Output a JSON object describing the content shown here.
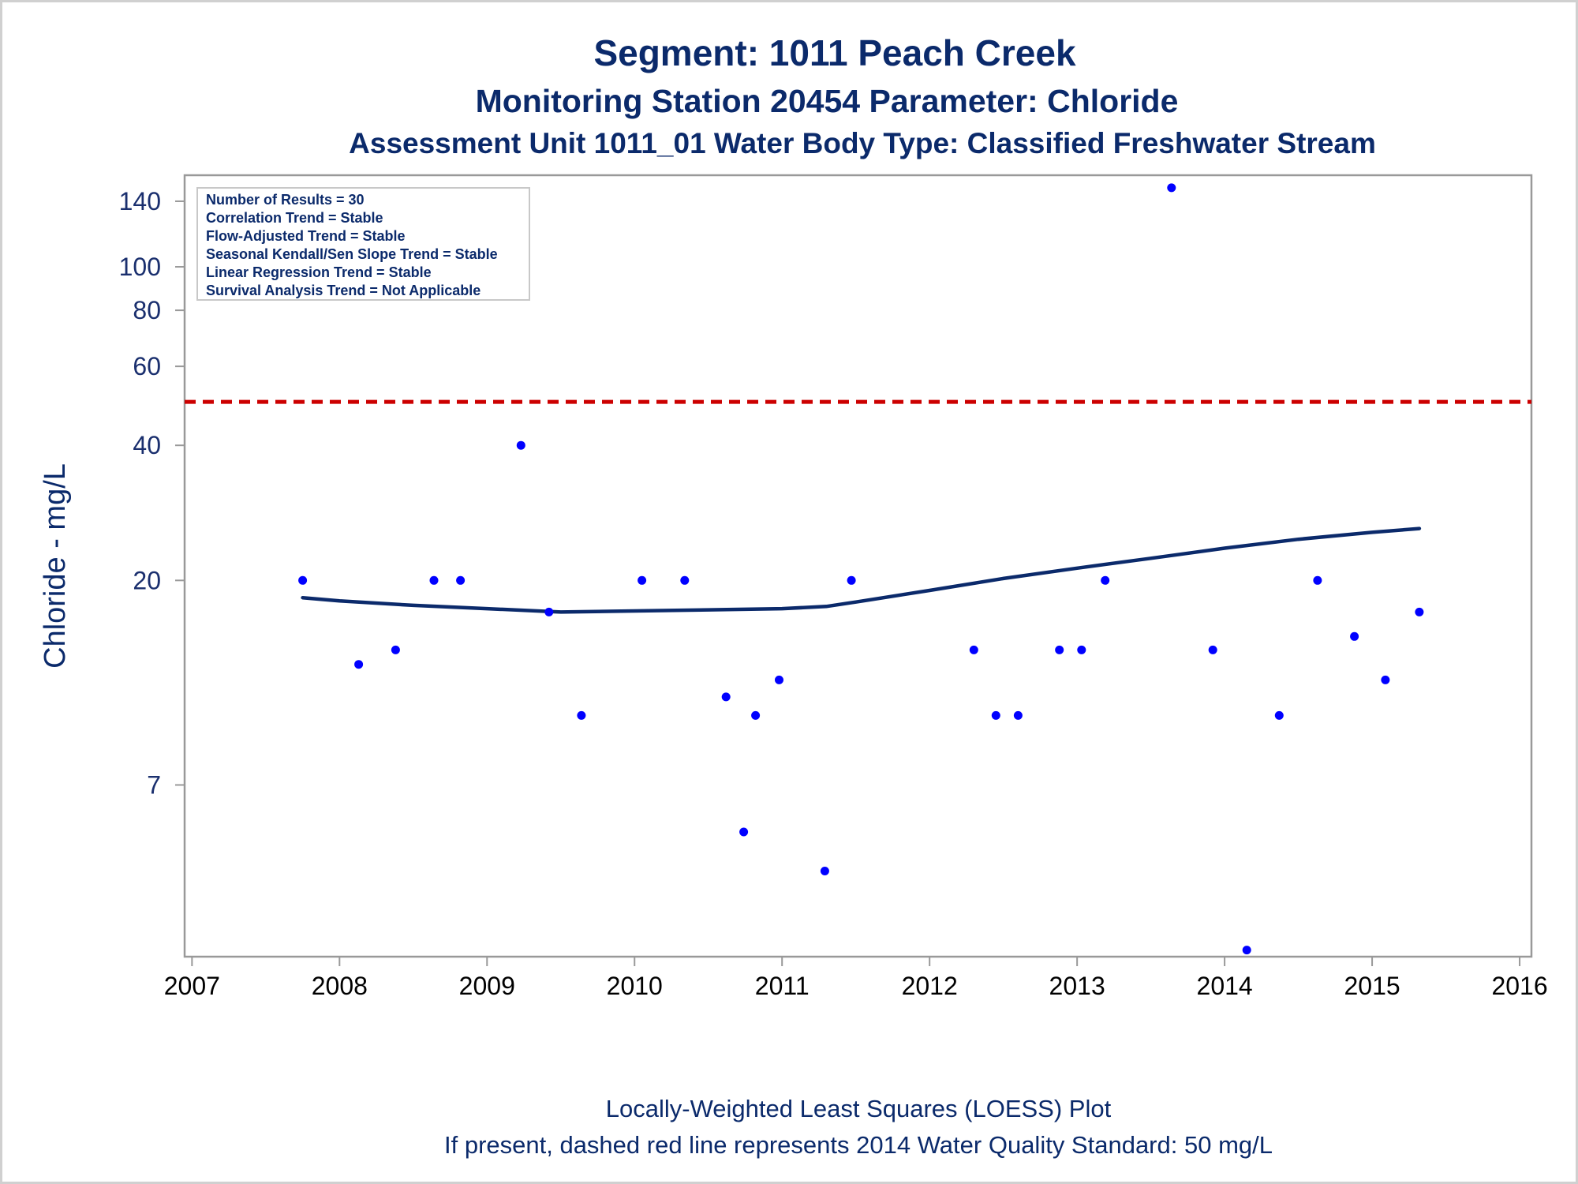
{
  "chart_data": {
    "type": "scatter",
    "title": "Segment: 1011  Peach Creek",
    "subtitle": "Monitoring Station 20454 Parameter: Chloride",
    "subtitle2": "Assessment Unit 1011_01   Water Body Type: Classified Freshwater Stream",
    "ylabel": "Chloride - mg/L",
    "xlabel": "",
    "yscale": "log",
    "ylim": [
      2.9,
      160
    ],
    "xlim": [
      2006.95,
      2016.08
    ],
    "y_ticks": [
      7,
      20,
      40,
      60,
      80,
      100,
      140
    ],
    "x_ticks": [
      2007,
      2008,
      2009,
      2010,
      2011,
      2012,
      2013,
      2014,
      2015,
      2016
    ],
    "grid": false,
    "colors": {
      "points": "#0000ff",
      "loess": "#0b2a6b",
      "standard": "#cc0000",
      "text": "#0b2a6b",
      "axis": "#999999"
    },
    "stats_box": [
      "Number of Results = 30",
      "Correlation Trend = Stable",
      "Flow-Adjusted Trend = Stable",
      "Seasonal Kendall/Sen Slope Trend = Stable",
      "Linear Regression Trend = Stable",
      "Survival Analysis Trend = Not Applicable"
    ],
    "standard_line": {
      "value": 50,
      "style": "dashed"
    },
    "series": [
      {
        "type": "scatter",
        "x": [
          2007.75,
          2008.13,
          2008.38,
          2008.64,
          2008.82,
          2009.23,
          2009.42,
          2009.64,
          2010.05,
          2010.34,
          2010.62,
          2010.74,
          2010.82,
          2010.98,
          2011.29,
          2011.47,
          2012.3,
          2012.45,
          2012.6,
          2012.88,
          2013.03,
          2013.19,
          2013.64,
          2013.92,
          2014.15,
          2014.37,
          2014.63,
          2014.88,
          2015.09,
          2015.32
        ],
        "y": [
          20,
          13,
          14,
          20,
          20,
          40,
          17,
          10,
          20,
          20,
          11,
          5.5,
          10,
          12,
          4.5,
          20,
          14,
          10,
          10,
          14,
          14,
          20,
          150,
          14,
          3.0,
          10,
          20,
          15,
          12,
          17
        ]
      },
      {
        "type": "line",
        "x": [
          2007.75,
          2008.0,
          2008.5,
          2009.0,
          2009.5,
          2010.0,
          2010.5,
          2011.0,
          2011.3,
          2011.5,
          2012.0,
          2012.5,
          2013.0,
          2013.5,
          2014.0,
          2014.5,
          2015.0,
          2015.32
        ],
        "y": [
          18.3,
          18.0,
          17.6,
          17.3,
          17.0,
          17.1,
          17.2,
          17.3,
          17.5,
          17.9,
          19.0,
          20.2,
          21.3,
          22.4,
          23.6,
          24.7,
          25.6,
          26.1
        ]
      }
    ],
    "footnotes": [
      "Locally-Weighted Least Squares (LOESS) Plot",
      "If present, dashed red line represents 2014 Water Quality Standard: 50     mg/L"
    ]
  }
}
